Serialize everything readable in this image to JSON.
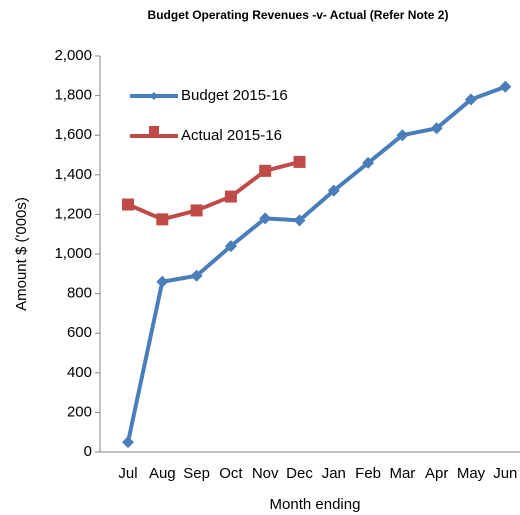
{
  "chart_data": {
    "type": "line",
    "title": "Budget Operating Revenues -v- Actual (Refer Note 2)",
    "x_label": "Month ending",
    "y_label": "Amount $ ('000s)",
    "categories": [
      "Jul",
      "Aug",
      "Sep",
      "Oct",
      "Nov",
      "Dec",
      "Jan",
      "Feb",
      "Mar",
      "Apr",
      "May",
      "Jun"
    ],
    "series": [
      {
        "name": "Budget 2015-16",
        "color": "#4a7ebb",
        "marker": "diamond",
        "values": [
          50,
          860,
          890,
          1040,
          1180,
          1170,
          1320,
          1460,
          1600,
          1635,
          1780,
          1845
        ]
      },
      {
        "name": "Actual 2015-16",
        "color": "#be4b48",
        "marker": "square",
        "values": [
          1250,
          1175,
          1220,
          1290,
          1420,
          1465,
          null,
          null,
          null,
          null,
          null,
          null
        ]
      }
    ],
    "ylim": [
      0,
      2000
    ],
    "yticks": [
      0,
      200,
      400,
      600,
      800,
      {
        "value": 1000,
        "label": "1,000"
      },
      {
        "value": 1200,
        "label": "1,200"
      },
      {
        "value": 1400,
        "label": "1,400"
      },
      {
        "value": 1600,
        "label": "1,600"
      },
      {
        "value": 1800,
        "label": "1,800"
      },
      {
        "value": 2000,
        "label": "2,000"
      }
    ],
    "grid": false,
    "legend": "upper left"
  }
}
